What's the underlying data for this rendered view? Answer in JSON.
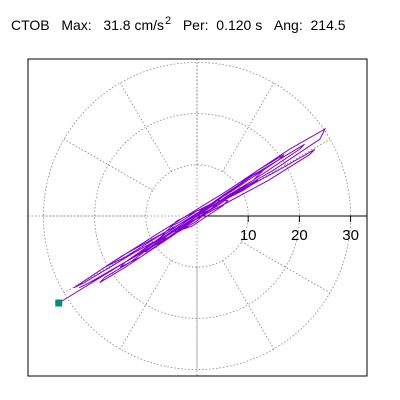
{
  "header": {
    "station": "CTOB",
    "max_label": "Max:",
    "max_value": "31.8 cm/s",
    "max_exp": "2",
    "per_label": "Per:",
    "per_value": "0.120 s",
    "ang_label": "Ang:",
    "ang_value": "214.5"
  },
  "colors": {
    "trace": "#8000d0",
    "endpoint_marker": "#009070",
    "grid": "#808080"
  },
  "chart_data": {
    "type": "scatter",
    "subtype": "polar particle-motion (hodogram)",
    "title": "",
    "radial_ticks": [
      10,
      20,
      30
    ],
    "radial_tick_labels": [
      "10",
      "20",
      "30"
    ],
    "rlim": [
      0,
      34
    ],
    "angular_grid_step_deg": 30,
    "grid": true,
    "trace_name": "",
    "trace": {
      "x": [
        0,
        2,
        4,
        3,
        0,
        -3,
        -5,
        -4,
        -1,
        2,
        5,
        6,
        4,
        0,
        -4,
        -7,
        -8,
        -5,
        -1,
        4,
        8,
        10,
        8,
        3,
        -3,
        -8,
        -11,
        -10,
        -6,
        0,
        6,
        11,
        13,
        11,
        5,
        -2,
        -9,
        -14,
        -15,
        -11,
        -4,
        4,
        11,
        16,
        17,
        12,
        4,
        -5,
        -13,
        -18,
        -19,
        -14,
        -5,
        5,
        14,
        20,
        21,
        16,
        7,
        -4,
        -14,
        -21,
        -23,
        -19,
        -9,
        3,
        15,
        24,
        25,
        18,
        6,
        -7,
        -18,
        -24,
        -22,
        -12,
        1,
        14,
        22,
        23,
        16,
        5,
        -6,
        -15,
        -18,
        -14,
        -6,
        3,
        10,
        12,
        9,
        3,
        -2,
        -5,
        -4,
        -1,
        1,
        0,
        -14,
        -27
      ],
      "y": [
        0,
        1,
        2,
        2,
        1,
        -1,
        -2,
        -3,
        -2,
        0,
        2,
        3,
        3,
        1,
        -1,
        -4,
        -5,
        -4,
        -1,
        2,
        5,
        6,
        5,
        2,
        -2,
        -5,
        -7,
        -7,
        -4,
        0,
        4,
        7,
        9,
        8,
        4,
        -1,
        -6,
        -9,
        -10,
        -8,
        -3,
        3,
        8,
        11,
        12,
        9,
        3,
        -3,
        -9,
        -12,
        -13,
        -10,
        -4,
        3,
        9,
        13,
        14,
        11,
        5,
        -2,
        -9,
        -13,
        -14,
        -12,
        -6,
        2,
        9,
        15,
        17,
        13,
        5,
        -3,
        -10,
        -14,
        -13,
        -7,
        0,
        7,
        12,
        13,
        9,
        3,
        -3,
        -8,
        -10,
        -8,
        -3,
        2,
        6,
        7,
        5,
        2,
        -1,
        -3,
        -3,
        -1,
        0,
        -1,
        -9,
        -17
      ]
    },
    "end_marker": {
      "x": -27,
      "y": -17
    }
  }
}
